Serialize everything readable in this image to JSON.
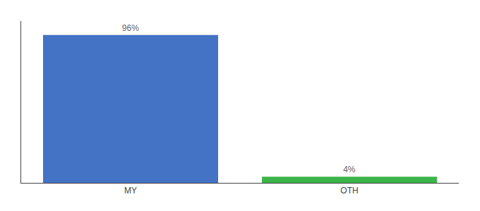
{
  "chart_data": {
    "type": "bar",
    "categories": [
      "MY",
      "OTH"
    ],
    "values": [
      96,
      4
    ],
    "value_labels": [
      "96%",
      "4%"
    ],
    "colors": [
      "#4472c4",
      "#3cb54a"
    ],
    "ylim": [
      0,
      105
    ],
    "data_labels": true,
    "tick_labels": "x",
    "grid": false
  }
}
